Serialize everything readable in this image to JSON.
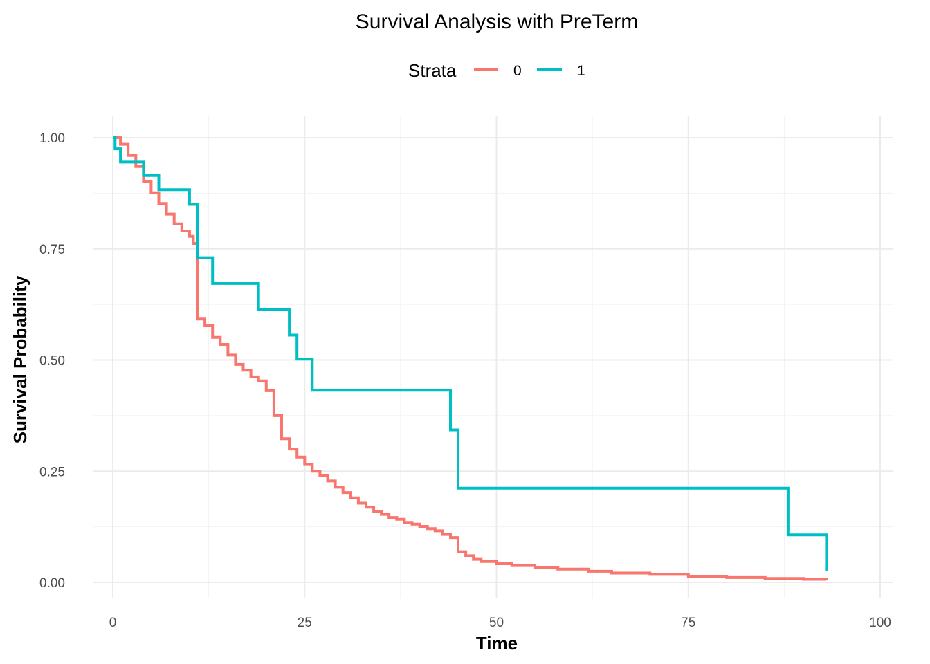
{
  "chart_data": {
    "type": "line",
    "subtype": "step",
    "title": "Survival Analysis with PreTerm",
    "xlabel": "Time",
    "ylabel": "Survival Probability",
    "xlim": [
      0,
      100
    ],
    "ylim": [
      0,
      1
    ],
    "x_ticks": [
      "0",
      "25",
      "50",
      "75",
      "100"
    ],
    "y_ticks": [
      "0.00",
      "0.25",
      "0.50",
      "0.75",
      "1.00"
    ],
    "grid": true,
    "legend": {
      "title": "Strata",
      "position": "top",
      "entries": [
        "0",
        "1"
      ]
    },
    "series": [
      {
        "name": "0",
        "color": "#F8766D",
        "points": [
          [
            0,
            1.0
          ],
          [
            1,
            0.985
          ],
          [
            2,
            0.96
          ],
          [
            3,
            0.935
          ],
          [
            4,
            0.902
          ],
          [
            5,
            0.876
          ],
          [
            6,
            0.852
          ],
          [
            7,
            0.828
          ],
          [
            8,
            0.806
          ],
          [
            9,
            0.79
          ],
          [
            10,
            0.778
          ],
          [
            10.5,
            0.762
          ],
          [
            11,
            0.592
          ],
          [
            12,
            0.577
          ],
          [
            13,
            0.551
          ],
          [
            14,
            0.535
          ],
          [
            15,
            0.511
          ],
          [
            16,
            0.49
          ],
          [
            17,
            0.477
          ],
          [
            18,
            0.462
          ],
          [
            19,
            0.453
          ],
          [
            20,
            0.431
          ],
          [
            21,
            0.375
          ],
          [
            22,
            0.323
          ],
          [
            23,
            0.3
          ],
          [
            24,
            0.282
          ],
          [
            25,
            0.265
          ],
          [
            26,
            0.25
          ],
          [
            27,
            0.24
          ],
          [
            28,
            0.228
          ],
          [
            29,
            0.214
          ],
          [
            30,
            0.202
          ],
          [
            31,
            0.19
          ],
          [
            32,
            0.178
          ],
          [
            33,
            0.169
          ],
          [
            34,
            0.16
          ],
          [
            35,
            0.153
          ],
          [
            36,
            0.146
          ],
          [
            37,
            0.142
          ],
          [
            38,
            0.135
          ],
          [
            39,
            0.131
          ],
          [
            40,
            0.126
          ],
          [
            41,
            0.121
          ],
          [
            42,
            0.116
          ],
          [
            43,
            0.108
          ],
          [
            44,
            0.101
          ],
          [
            45,
            0.069
          ],
          [
            46,
            0.06
          ],
          [
            47,
            0.052
          ],
          [
            48,
            0.047
          ],
          [
            50,
            0.042
          ],
          [
            52,
            0.038
          ],
          [
            55,
            0.034
          ],
          [
            58,
            0.03
          ],
          [
            62,
            0.025
          ],
          [
            65,
            0.021
          ],
          [
            70,
            0.018
          ],
          [
            75,
            0.014
          ],
          [
            80,
            0.011
          ],
          [
            85,
            0.009
          ],
          [
            90,
            0.007
          ],
          [
            93,
            0.005
          ]
        ]
      },
      {
        "name": "1",
        "color": "#00BFC4",
        "points": [
          [
            0,
            1.0
          ],
          [
            0.3,
            0.975
          ],
          [
            1,
            0.945
          ],
          [
            4,
            0.915
          ],
          [
            6,
            0.883
          ],
          [
            10,
            0.85
          ],
          [
            11,
            0.73
          ],
          [
            13,
            0.672
          ],
          [
            19,
            0.613
          ],
          [
            23,
            0.556
          ],
          [
            24,
            0.502
          ],
          [
            26,
            0.432
          ],
          [
            44,
            0.343
          ],
          [
            45,
            0.212
          ],
          [
            88,
            0.107
          ],
          [
            93,
            0.025
          ]
        ]
      }
    ]
  }
}
